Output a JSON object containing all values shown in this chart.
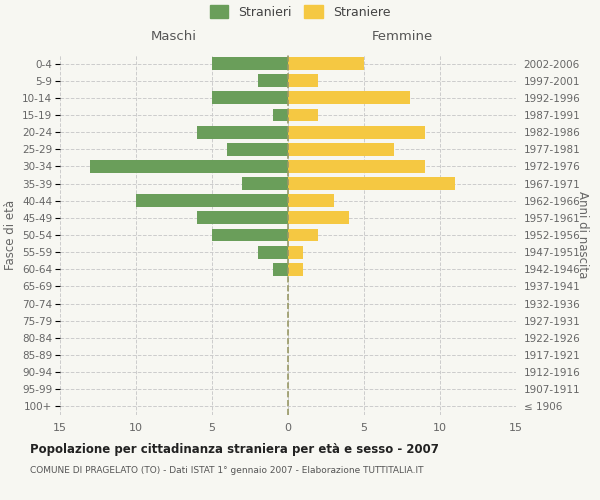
{
  "age_groups": [
    "100+",
    "95-99",
    "90-94",
    "85-89",
    "80-84",
    "75-79",
    "70-74",
    "65-69",
    "60-64",
    "55-59",
    "50-54",
    "45-49",
    "40-44",
    "35-39",
    "30-34",
    "25-29",
    "20-24",
    "15-19",
    "10-14",
    "5-9",
    "0-4"
  ],
  "birth_years": [
    "≤ 1906",
    "1907-1911",
    "1912-1916",
    "1917-1921",
    "1922-1926",
    "1927-1931",
    "1932-1936",
    "1937-1941",
    "1942-1946",
    "1947-1951",
    "1952-1956",
    "1957-1961",
    "1962-1966",
    "1967-1971",
    "1972-1976",
    "1977-1981",
    "1982-1986",
    "1987-1991",
    "1992-1996",
    "1997-2001",
    "2002-2006"
  ],
  "males": [
    0,
    0,
    0,
    0,
    0,
    0,
    0,
    0,
    1,
    2,
    5,
    6,
    10,
    3,
    13,
    4,
    6,
    1,
    5,
    2,
    5
  ],
  "females": [
    0,
    0,
    0,
    0,
    0,
    0,
    0,
    0,
    1,
    1,
    2,
    4,
    3,
    11,
    9,
    7,
    9,
    2,
    8,
    2,
    5
  ],
  "male_color": "#6a9e5a",
  "female_color": "#f5c842",
  "background_color": "#f7f7f2",
  "grid_color": "#cccccc",
  "zero_line_color": "#999966",
  "title": "Popolazione per cittadinanza straniera per età e sesso - 2007",
  "subtitle": "COMUNE DI PRAGELATO (TO) - Dati ISTAT 1° gennaio 2007 - Elaborazione TUTTITALIA.IT",
  "xlabel_left": "Maschi",
  "xlabel_right": "Femmine",
  "ylabel_left": "Fasce di età",
  "ylabel_right": "Anni di nascita",
  "legend_male": "Stranieri",
  "legend_female": "Straniere",
  "xlim": 15
}
